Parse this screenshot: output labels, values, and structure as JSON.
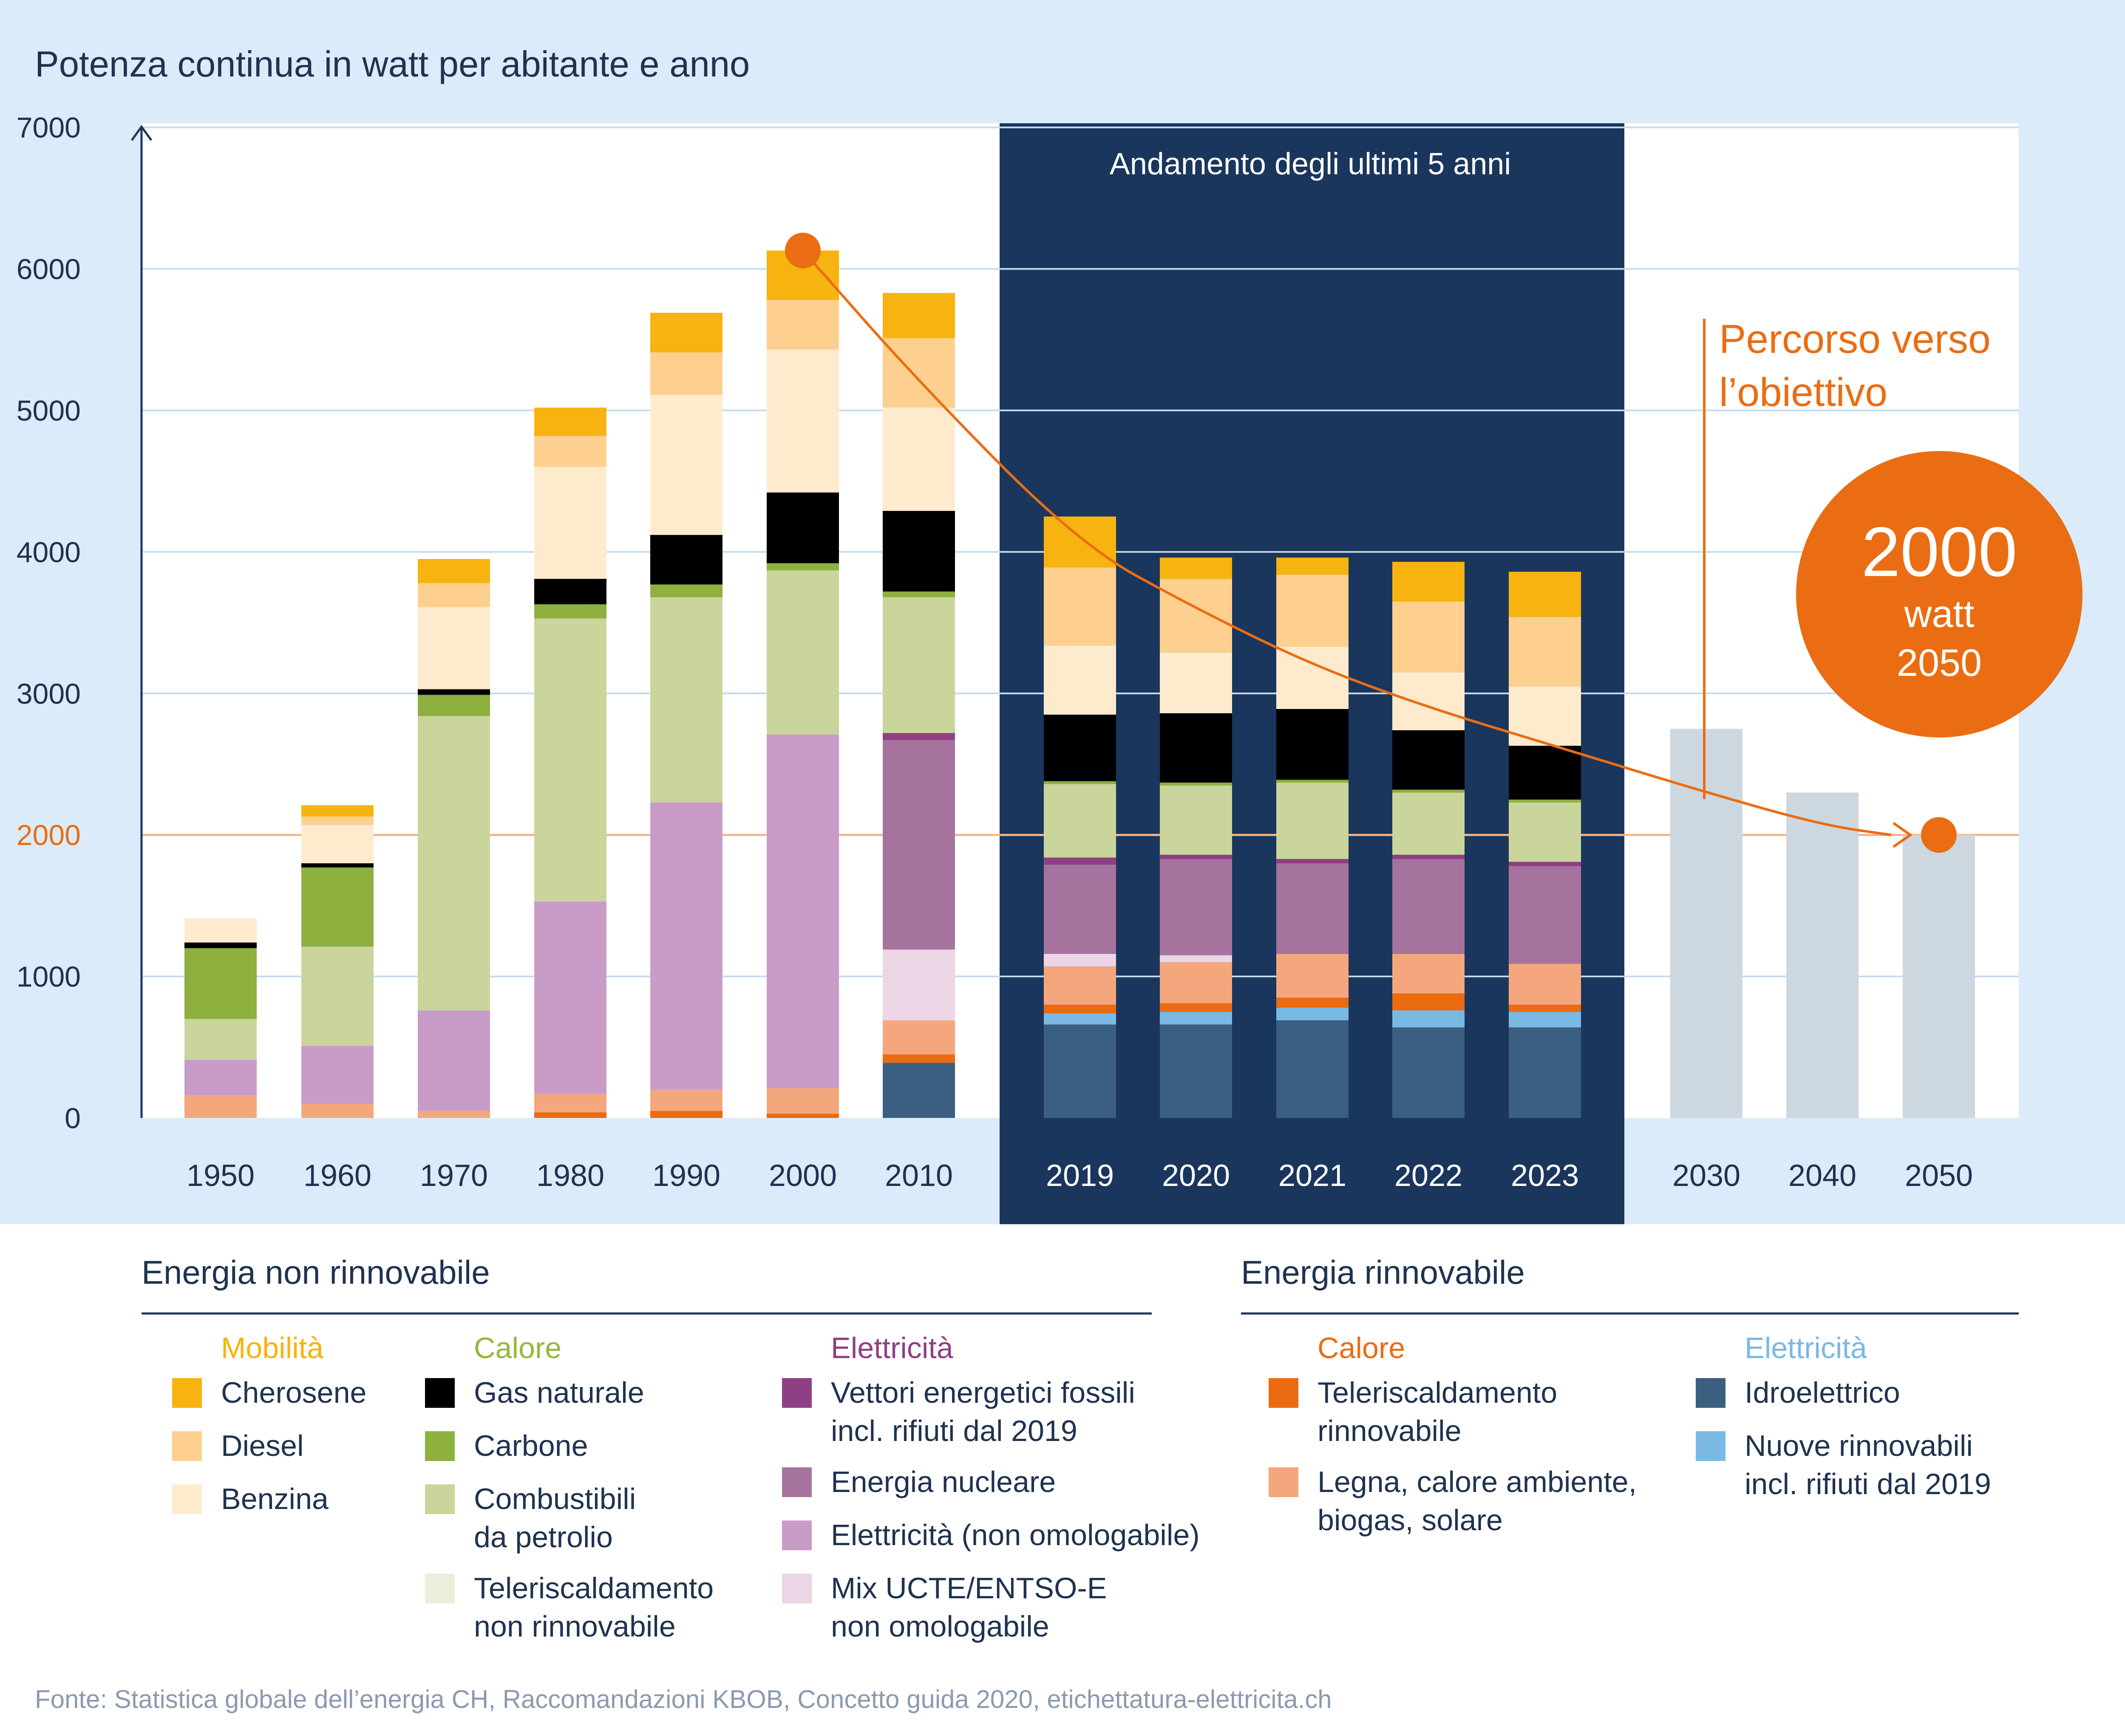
{
  "title": "Potenza continua in watt per abitante e anno",
  "panel_label": "Andamento degli ultimi 5 anni",
  "target_label_line1": "Percorso verso",
  "target_label_line2": "l’obiettivo",
  "target_circle": {
    "value": "2000",
    "unit": "watt",
    "year": "2050"
  },
  "source": "Fonte: Statistica globale dell’energia CH, Raccomandazioni KBOB, Concetto guida 2020, etichettatura-elettricita.ch",
  "colors": {
    "cherosene": "#f7b30f",
    "diesel": "#fdd08f",
    "benzina": "#feebce",
    "gas_naturale": "#000000",
    "carbone": "#8db03f",
    "combustibili_petrolio": "#c9d59b",
    "teleriscaldamento_nr": "#eaefdc",
    "vettori_fossili": "#8f3f84",
    "nucleare": "#a6739f",
    "elettricita_non_omologabile": "#c99cc8",
    "mix_ucte": "#ecd5e5",
    "teleriscaldamento_r": "#eb6b10",
    "legna": "#f4a77c",
    "idroelettrico": "#3a5f80",
    "nuove_rinnovabili": "#7ab9e3",
    "target_bar": "#cdd7df",
    "accent": "#ea6d13",
    "dark_panel": "#1a365c",
    "background": "#dcebf9"
  },
  "legend": {
    "non_renewable": {
      "heading": "Energia non rinnovabile",
      "groups": [
        {
          "title": "Mobilità",
          "title_color": "#f7b30f",
          "items": [
            {
              "label": "Cherosene",
              "color": "#f7b30f"
            },
            {
              "label": "Diesel",
              "color": "#fdd08f"
            },
            {
              "label": "Benzina",
              "color": "#feebce"
            }
          ]
        },
        {
          "title": "Calore",
          "title_color": "#95b83e",
          "items": [
            {
              "label": "Gas naturale",
              "color": "#000000"
            },
            {
              "label": "Carbone",
              "color": "#8db03f"
            },
            {
              "label": "Combustibili|da petrolio",
              "color": "#c9d59b"
            },
            {
              "label": "Teleriscaldamento|non rinnovabile",
              "color": "#eaefdc"
            }
          ]
        },
        {
          "title": "Elettricità",
          "title_color": "#8f3f84",
          "items": [
            {
              "label": "Vettori energetici fossili|incl. rifiuti dal 2019",
              "color": "#8f3f84"
            },
            {
              "label": "Energia nucleare",
              "color": "#a6739f"
            },
            {
              "label": "Elettricità (non omologabile)",
              "color": "#c99cc8"
            },
            {
              "label": "Mix UCTE/ENTSO-E|non omologabile",
              "color": "#ecd5e5"
            }
          ]
        }
      ]
    },
    "renewable": {
      "heading": "Energia rinnovabile",
      "groups": [
        {
          "title": "Calore",
          "title_color": "#ea6d13",
          "items": [
            {
              "label": "Teleriscaldamento|rinnovabile",
              "color": "#eb6b10"
            },
            {
              "label": "Legna, calore ambiente,|biogas, solare",
              "color": "#f4a77c"
            }
          ]
        },
        {
          "title": "Elettricità",
          "title_color": "#7ab9e3",
          "items": [
            {
              "label": "Idroelettrico",
              "color": "#3a5f80"
            },
            {
              "label": "Nuove rinnovabili|incl. rifiuti dal 2019",
              "color": "#7ab9e3"
            }
          ]
        }
      ]
    }
  },
  "chart_data": {
    "type": "bar",
    "stacked": true,
    "unit": "W",
    "ylim": [
      0,
      7000
    ],
    "yticks": [
      0,
      1000,
      2000,
      3000,
      4000,
      5000,
      6000,
      7000
    ],
    "reference_line": 2000,
    "categories": [
      "1950",
      "1960",
      "1970",
      "1980",
      "1990",
      "2000",
      "2010",
      "2019",
      "2020",
      "2021",
      "2022",
      "2023",
      "2030",
      "2040",
      "2050"
    ],
    "series": [
      {
        "name": "Idroelettrico",
        "key": "idroelettrico",
        "values": [
          0,
          0,
          0,
          0,
          0,
          0,
          390,
          660,
          660,
          690,
          640,
          640,
          0,
          0,
          0
        ]
      },
      {
        "name": "Nuove rinnovabili incl. rifiuti dal 2019",
        "key": "nuove_rinnovabili",
        "values": [
          0,
          0,
          0,
          0,
          0,
          0,
          0,
          80,
          90,
          90,
          120,
          110,
          0,
          0,
          0
        ]
      },
      {
        "name": "Teleriscaldamento rinnovabile",
        "key": "teleriscaldamento_r",
        "values": [
          0,
          0,
          0,
          40,
          50,
          30,
          60,
          60,
          60,
          70,
          120,
          50,
          0,
          0,
          0
        ]
      },
      {
        "name": "Legna, calore ambiente, biogas, solare",
        "key": "legna",
        "values": [
          160,
          100,
          50,
          130,
          150,
          180,
          240,
          270,
          290,
          310,
          280,
          290,
          0,
          0,
          0
        ]
      },
      {
        "name": "Mix UCTE/ENTSO-E non omologabile",
        "key": "mix_ucte",
        "values": [
          0,
          0,
          0,
          0,
          0,
          0,
          500,
          90,
          50,
          0,
          0,
          0,
          0,
          0,
          0
        ]
      },
      {
        "name": "Elettricità (non omologabile)",
        "key": "elettricita_non_omologabile",
        "values": [
          250,
          410,
          710,
          1360,
          2030,
          2500,
          0,
          0,
          0,
          0,
          0,
          0,
          0,
          0,
          0
        ]
      },
      {
        "name": "Energia nucleare",
        "key": "nucleare",
        "values": [
          0,
          0,
          0,
          0,
          0,
          0,
          1480,
          630,
          680,
          640,
          670,
          690,
          0,
          0,
          0
        ]
      },
      {
        "name": "Vettori energetici fossili incl. rifiuti dal 2019",
        "key": "vettori_fossili",
        "values": [
          0,
          0,
          0,
          0,
          0,
          0,
          50,
          50,
          30,
          30,
          30,
          30,
          0,
          0,
          0
        ]
      },
      {
        "name": "Teleriscaldamento non rinnovabile",
        "key": "teleriscaldamento_nr",
        "values": [
          0,
          0,
          0,
          0,
          0,
          0,
          0,
          0,
          0,
          0,
          0,
          0,
          0,
          0,
          0
        ]
      },
      {
        "name": "Combustibili da petrolio",
        "key": "combustibili_petrolio",
        "values": [
          290,
          700,
          2080,
          2000,
          1450,
          1160,
          960,
          520,
          490,
          540,
          440,
          420,
          0,
          0,
          0
        ]
      },
      {
        "name": "Carbone",
        "key": "carbone",
        "values": [
          500,
          560,
          150,
          100,
          90,
          50,
          40,
          20,
          20,
          20,
          20,
          20,
          0,
          0,
          0
        ]
      },
      {
        "name": "Gas naturale",
        "key": "gas_naturale",
        "values": [
          40,
          30,
          40,
          180,
          350,
          500,
          570,
          470,
          490,
          500,
          420,
          380,
          0,
          0,
          0
        ]
      },
      {
        "name": "Benzina",
        "key": "benzina",
        "values": [
          170,
          270,
          580,
          790,
          990,
          1010,
          730,
          490,
          430,
          440,
          410,
          420,
          0,
          0,
          0
        ]
      },
      {
        "name": "Diesel",
        "key": "diesel",
        "values": [
          0,
          60,
          170,
          220,
          300,
          350,
          490,
          550,
          520,
          510,
          500,
          490,
          0,
          0,
          0
        ]
      },
      {
        "name": "Cherosene",
        "key": "cherosene",
        "values": [
          0,
          80,
          170,
          200,
          280,
          350,
          320,
          360,
          150,
          120,
          280,
          320,
          0,
          0,
          0
        ]
      },
      {
        "name": "Percorso verso l’obiettivo",
        "key": "target_bar",
        "values": [
          0,
          0,
          0,
          0,
          0,
          0,
          0,
          0,
          0,
          0,
          0,
          0,
          2750,
          2300,
          2000
        ]
      }
    ],
    "target_path": {
      "x": [
        "2000",
        "2010",
        "2019",
        "2020",
        "2021",
        "2022",
        "2023",
        "2030",
        "2040",
        "2050"
      ],
      "y": [
        6130,
        5200,
        4050,
        3600,
        3200,
        2900,
        2650,
        2300,
        2070,
        2000
      ]
    },
    "annotations": [
      "2000 watt 2050",
      "Percorso verso l’obiettivo",
      "Andamento degli ultimi 5 anni"
    ]
  }
}
